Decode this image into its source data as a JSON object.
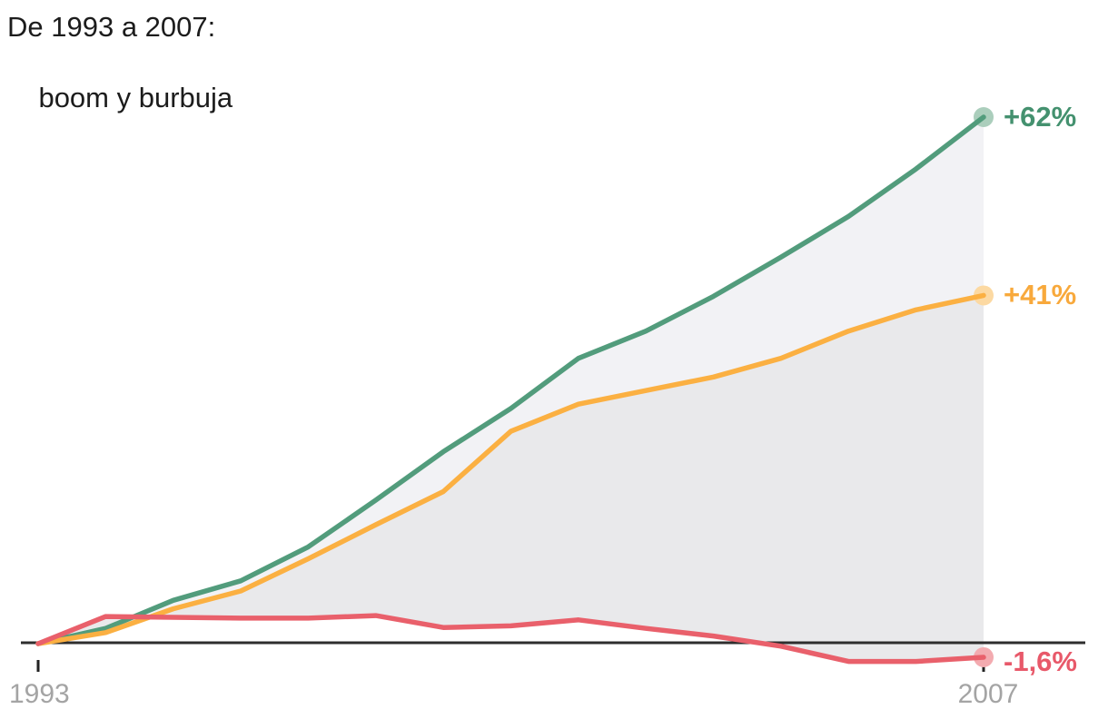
{
  "title": {
    "line1": "De 1993 a 2007:",
    "line2": "boom y burbuja"
  },
  "chart_data": {
    "type": "line",
    "title": "De 1993 a 2007: boom y burbuja",
    "x": [
      1993,
      1994,
      1995,
      1996,
      1997,
      1998,
      1999,
      2000,
      2001,
      2002,
      2003,
      2004,
      2005,
      2006,
      2007
    ],
    "x_tick_labels": [
      "1993",
      "2007"
    ],
    "ylim": [
      -4,
      66
    ],
    "grid": "off",
    "legend": "none",
    "series": [
      {
        "name": "serie-verde",
        "end_label": "+62%",
        "color": "#529c7c",
        "dot_color": "#abcebc",
        "label_color": "#44916f",
        "label_dy": 0,
        "values": [
          0,
          1.8,
          5.1,
          7.4,
          11.4,
          16.9,
          22.6,
          27.7,
          33.6,
          36.8,
          40.9,
          45.5,
          50.3,
          55.9,
          62
        ]
      },
      {
        "name": "serie-naranja",
        "end_label": "+41%",
        "color": "#fbb042",
        "dot_color": "#fcd9a2",
        "label_color": "#f8a93c",
        "label_dy": 0,
        "values": [
          0,
          1.3,
          4.1,
          6.2,
          10,
          14,
          17.9,
          25,
          28.2,
          29.8,
          31.4,
          33.6,
          36.8,
          39.3,
          41
        ]
      },
      {
        "name": "serie-roja",
        "end_label": "-1,6%",
        "color": "#e9606b",
        "dot_color": "#f3abb0",
        "label_color": "#e8596a",
        "label_dy": 5,
        "values": [
          0,
          3.2,
          3.1,
          3,
          3,
          3.3,
          1.9,
          2.1,
          2.8,
          1.8,
          0.9,
          -0.3,
          -2.1,
          -2.1,
          -1.6
        ]
      }
    ],
    "layout": {
      "background": "#ffffff",
      "band_green_orange": "#f2f2f5",
      "band_orange_red": "#e9e9eb",
      "axis_color": "#2e2e2e",
      "tick_color": "#222222",
      "tick_label_color": "#a4a4a4",
      "title_color": "#1c1c1c"
    }
  }
}
